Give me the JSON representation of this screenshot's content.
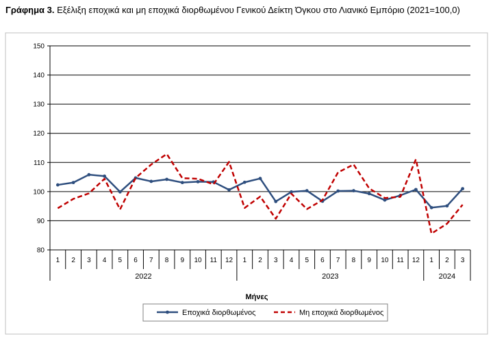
{
  "chart_data": {
    "type": "line",
    "title_prefix": "Γράφημα 3.",
    "title": "Εξέλιξη εποχικά και μη εποχικά διορθωμένου Γενικού Δείκτη Όγκου στο Λιανικό Εμπόριο (2021=100,0)",
    "xlabel": "Μήνες",
    "ylabel": "",
    "ylim": [
      80,
      150
    ],
    "yticks": [
      "80",
      "90",
      "100",
      "110",
      "120",
      "130",
      "140",
      "150"
    ],
    "categories": [
      "1",
      "2",
      "3",
      "4",
      "5",
      "6",
      "7",
      "8",
      "9",
      "10",
      "11",
      "12",
      "1",
      "2",
      "3",
      "4",
      "5",
      "6",
      "7",
      "8",
      "9",
      "10",
      "11",
      "12",
      "1",
      "2",
      "3"
    ],
    "years": [
      {
        "label": "2022",
        "months": 12
      },
      {
        "label": "2023",
        "months": 12
      },
      {
        "label": "2024",
        "months": 3
      }
    ],
    "series": [
      {
        "name": "Εποχικά διορθωμένος",
        "color": "#2e4e7e",
        "style": "solid",
        "values": [
          102.3,
          103.1,
          105.8,
          105.3,
          99.9,
          104.7,
          103.5,
          104.2,
          103.1,
          103.4,
          103.3,
          100.6,
          103.2,
          104.5,
          96.6,
          99.9,
          100.3,
          96.7,
          100.2,
          100.3,
          99.3,
          97.1,
          98.7,
          100.7,
          94.5,
          95.1,
          101.0
        ]
      },
      {
        "name": "Μη εποχικά διορθωμένος",
        "color": "#c00000",
        "style": "dashed",
        "values": [
          94.3,
          97.5,
          99.4,
          104.4,
          93.9,
          104.7,
          109.3,
          112.9,
          104.6,
          104.4,
          102.5,
          110.2,
          94.4,
          98.3,
          90.7,
          99.3,
          94.0,
          97.1,
          106.6,
          109.3,
          101.1,
          97.8,
          98.2,
          111.1,
          85.6,
          89.0,
          95.5
        ]
      }
    ],
    "grid": true,
    "legend_position": "bottom"
  }
}
